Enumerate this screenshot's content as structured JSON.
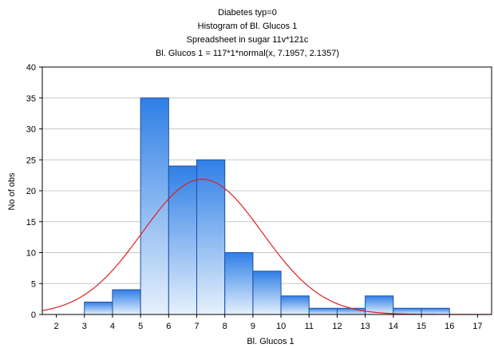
{
  "chart_data": {
    "type": "bar",
    "title_lines": [
      "Diabetes typ=0",
      "Histogram of Bl. Glucos 1",
      "Spreadsheet in sugar 11v*121c",
      "Bl. Glucos 1 = 117*1*normal(x, 7.1957, 2.1357)"
    ],
    "xlabel": "Bl. Glucos 1",
    "ylabel": "No of obs",
    "xlim": [
      1.5,
      17.5
    ],
    "ylim": [
      0,
      40
    ],
    "x_ticks": [
      "2",
      "3",
      "4",
      "5",
      "6",
      "7",
      "8",
      "9",
      "10",
      "11",
      "12",
      "13",
      "14",
      "15",
      "16",
      "17"
    ],
    "y_ticks": [
      "0",
      "5",
      "10",
      "15",
      "20",
      "25",
      "30",
      "35",
      "40"
    ],
    "bins": [
      {
        "from": 3,
        "to": 4,
        "count": 2
      },
      {
        "from": 4,
        "to": 5,
        "count": 4
      },
      {
        "from": 5,
        "to": 6,
        "count": 35
      },
      {
        "from": 6,
        "to": 7,
        "count": 24
      },
      {
        "from": 7,
        "to": 8,
        "count": 25
      },
      {
        "from": 8,
        "to": 9,
        "count": 10
      },
      {
        "from": 9,
        "to": 10,
        "count": 7
      },
      {
        "from": 10,
        "to": 11,
        "count": 3
      },
      {
        "from": 11,
        "to": 12,
        "count": 1
      },
      {
        "from": 12,
        "to": 13,
        "count": 1
      },
      {
        "from": 13,
        "to": 14,
        "count": 3
      },
      {
        "from": 14,
        "to": 15,
        "count": 1
      },
      {
        "from": 15,
        "to": 16,
        "count": 1
      }
    ],
    "normal_fit": {
      "n": 117,
      "bin_width": 1,
      "mean": 7.1957,
      "sd": 2.1357
    },
    "grid": {
      "horizontal": true,
      "vertical": false
    },
    "colors": {
      "bar_top": "#2f7fe6",
      "bar_bottom": "#e6f1fc",
      "bar_stroke": "#1a4fa8",
      "curve": "#e02020",
      "grid": "#c8c8c8",
      "frame": "#000000"
    }
  }
}
